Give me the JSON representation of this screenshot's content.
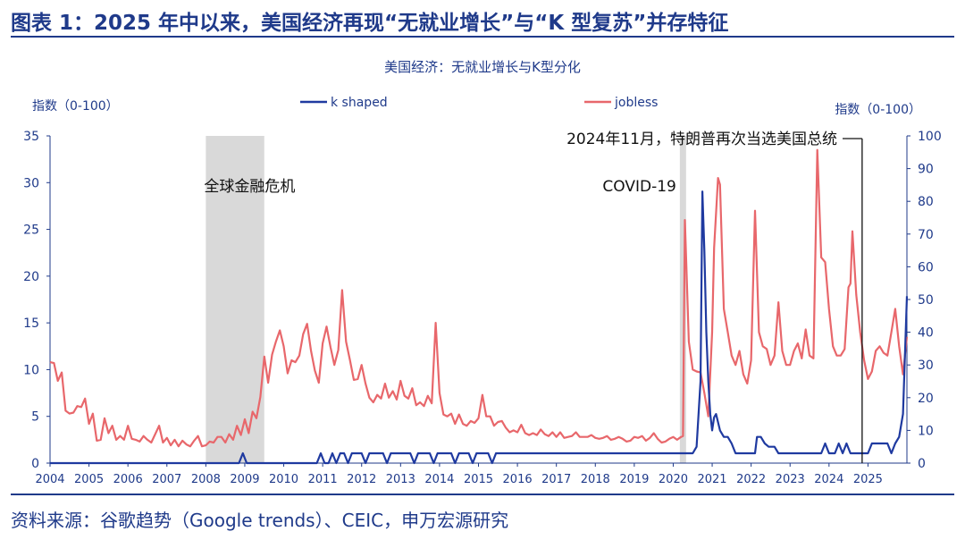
{
  "header": {
    "title": "图表 1：2025 年中以来，美国经济再现“无就业增长”与“K 型复苏”并存特征"
  },
  "footer": {
    "source": "资料来源：谷歌趋势（Google trends）、CEIC，申万宏源研究"
  },
  "colors": {
    "accent": "#1f3a8a",
    "k_shaped": "#1f3aa0",
    "jobless": "#e8676b",
    "shade": "#d9d9d9"
  },
  "chart_data": {
    "type": "line",
    "title": "美国经济：无就业增长与K型分化",
    "ylabel_left": "指数（0-100）",
    "ylabel_right": "指数（0-100）",
    "ylim_left": [
      0,
      35
    ],
    "ylim_right": [
      0,
      100
    ],
    "xlim": [
      2004.0,
      2026.0
    ],
    "yticks_left": [
      "0",
      "5",
      "10",
      "15",
      "20",
      "25",
      "30",
      "35"
    ],
    "yticks_right": [
      "0",
      "10",
      "20",
      "30",
      "40",
      "50",
      "60",
      "70",
      "80",
      "90",
      "100"
    ],
    "xticks": [
      "2004",
      "2005",
      "2006",
      "2007",
      "2008",
      "2009",
      "2010",
      "2011",
      "2012",
      "2013",
      "2014",
      "2015",
      "2016",
      "2017",
      "2018",
      "2019",
      "2020",
      "2021",
      "2022",
      "2023",
      "2024",
      "2025"
    ],
    "legend": {
      "placement": "top",
      "entries": [
        "k shaped",
        "jobless"
      ]
    },
    "shaded_periods": [
      {
        "label": "全球金融危机",
        "start": 2008.0,
        "end": 2009.5
      },
      {
        "label": "COVID-19",
        "start": 2020.17,
        "end": 2020.33
      }
    ],
    "annotations": [
      {
        "text": "2024年11月，特朗普再次当选美国总统",
        "x": 2024.85
      }
    ],
    "series": [
      {
        "name": "jobless",
        "axis": "left",
        "points": [
          [
            2004.0,
            10.8
          ],
          [
            2004.1,
            10.7
          ],
          [
            2004.2,
            8.8
          ],
          [
            2004.3,
            9.7
          ],
          [
            2004.4,
            5.6
          ],
          [
            2004.5,
            5.3
          ],
          [
            2004.6,
            5.4
          ],
          [
            2004.7,
            6.1
          ],
          [
            2004.8,
            6.0
          ],
          [
            2004.9,
            6.9
          ],
          [
            2005.0,
            4.2
          ],
          [
            2005.1,
            5.3
          ],
          [
            2005.2,
            2.4
          ],
          [
            2005.3,
            2.5
          ],
          [
            2005.4,
            4.8
          ],
          [
            2005.5,
            3.2
          ],
          [
            2005.6,
            4.0
          ],
          [
            2005.7,
            2.5
          ],
          [
            2005.8,
            2.9
          ],
          [
            2005.9,
            2.5
          ],
          [
            2006.0,
            4.0
          ],
          [
            2006.1,
            2.6
          ],
          [
            2006.2,
            2.5
          ],
          [
            2006.3,
            2.3
          ],
          [
            2006.4,
            2.9
          ],
          [
            2006.5,
            2.5
          ],
          [
            2006.6,
            2.2
          ],
          [
            2006.7,
            3.1
          ],
          [
            2006.8,
            4.0
          ],
          [
            2006.9,
            2.2
          ],
          [
            2007.0,
            2.7
          ],
          [
            2007.1,
            1.9
          ],
          [
            2007.2,
            2.5
          ],
          [
            2007.3,
            1.8
          ],
          [
            2007.4,
            2.4
          ],
          [
            2007.5,
            2.0
          ],
          [
            2007.6,
            1.8
          ],
          [
            2007.7,
            2.4
          ],
          [
            2007.8,
            2.9
          ],
          [
            2007.9,
            1.8
          ],
          [
            2008.0,
            1.9
          ],
          [
            2008.1,
            2.3
          ],
          [
            2008.2,
            2.2
          ],
          [
            2008.3,
            2.8
          ],
          [
            2008.4,
            2.8
          ],
          [
            2008.5,
            2.2
          ],
          [
            2008.6,
            3.1
          ],
          [
            2008.7,
            2.5
          ],
          [
            2008.8,
            4.0
          ],
          [
            2008.9,
            3.0
          ],
          [
            2009.0,
            4.7
          ],
          [
            2009.1,
            3.2
          ],
          [
            2009.2,
            5.5
          ],
          [
            2009.3,
            4.8
          ],
          [
            2009.4,
            7.1
          ],
          [
            2009.5,
            11.4
          ],
          [
            2009.6,
            8.6
          ],
          [
            2009.7,
            11.6
          ],
          [
            2009.8,
            13.0
          ],
          [
            2009.9,
            14.2
          ],
          [
            2010.0,
            12.5
          ],
          [
            2010.1,
            9.6
          ],
          [
            2010.2,
            11.0
          ],
          [
            2010.3,
            10.8
          ],
          [
            2010.4,
            11.5
          ],
          [
            2010.5,
            13.8
          ],
          [
            2010.6,
            14.9
          ],
          [
            2010.7,
            12.0
          ],
          [
            2010.8,
            9.9
          ],
          [
            2010.9,
            8.6
          ],
          [
            2011.0,
            12.8
          ],
          [
            2011.1,
            14.6
          ],
          [
            2011.2,
            12.4
          ],
          [
            2011.3,
            10.5
          ],
          [
            2011.4,
            12.1
          ],
          [
            2011.5,
            18.5
          ],
          [
            2011.6,
            13.0
          ],
          [
            2011.7,
            11.0
          ],
          [
            2011.8,
            8.9
          ],
          [
            2011.9,
            9.0
          ],
          [
            2012.0,
            10.5
          ],
          [
            2012.1,
            8.5
          ],
          [
            2012.2,
            7.0
          ],
          [
            2012.3,
            6.5
          ],
          [
            2012.4,
            7.3
          ],
          [
            2012.5,
            6.9
          ],
          [
            2012.6,
            8.5
          ],
          [
            2012.7,
            7.0
          ],
          [
            2012.8,
            7.7
          ],
          [
            2012.9,
            6.8
          ],
          [
            2013.0,
            8.8
          ],
          [
            2013.1,
            7.2
          ],
          [
            2013.2,
            6.9
          ],
          [
            2013.3,
            8.0
          ],
          [
            2013.4,
            6.2
          ],
          [
            2013.5,
            6.5
          ],
          [
            2013.6,
            6.1
          ],
          [
            2013.7,
            7.2
          ],
          [
            2013.8,
            6.4
          ],
          [
            2013.9,
            15.0
          ],
          [
            2014.0,
            7.5
          ],
          [
            2014.1,
            5.2
          ],
          [
            2014.2,
            5.0
          ],
          [
            2014.3,
            5.3
          ],
          [
            2014.4,
            4.2
          ],
          [
            2014.5,
            5.2
          ],
          [
            2014.6,
            4.2
          ],
          [
            2014.7,
            4.0
          ],
          [
            2014.8,
            4.5
          ],
          [
            2014.9,
            4.3
          ],
          [
            2015.0,
            4.8
          ],
          [
            2015.1,
            7.3
          ],
          [
            2015.2,
            5.0
          ],
          [
            2015.3,
            5.0
          ],
          [
            2015.4,
            4.0
          ],
          [
            2015.5,
            4.4
          ],
          [
            2015.6,
            4.5
          ],
          [
            2015.7,
            3.8
          ],
          [
            2015.8,
            3.3
          ],
          [
            2015.9,
            3.5
          ],
          [
            2016.0,
            3.3
          ],
          [
            2016.1,
            4.1
          ],
          [
            2016.2,
            3.2
          ],
          [
            2016.3,
            3.0
          ],
          [
            2016.4,
            3.2
          ],
          [
            2016.5,
            3.0
          ],
          [
            2016.6,
            3.6
          ],
          [
            2016.7,
            3.1
          ],
          [
            2016.8,
            2.9
          ],
          [
            2016.9,
            3.3
          ],
          [
            2017.0,
            2.8
          ],
          [
            2017.1,
            3.3
          ],
          [
            2017.2,
            2.7
          ],
          [
            2017.3,
            2.8
          ],
          [
            2017.4,
            2.9
          ],
          [
            2017.5,
            3.3
          ],
          [
            2017.6,
            2.8
          ],
          [
            2017.7,
            2.8
          ],
          [
            2017.8,
            2.8
          ],
          [
            2017.9,
            3.0
          ],
          [
            2018.0,
            2.7
          ],
          [
            2018.1,
            2.6
          ],
          [
            2018.2,
            2.7
          ],
          [
            2018.3,
            2.9
          ],
          [
            2018.4,
            2.5
          ],
          [
            2018.5,
            2.6
          ],
          [
            2018.6,
            2.8
          ],
          [
            2018.7,
            2.6
          ],
          [
            2018.8,
            2.3
          ],
          [
            2018.9,
            2.4
          ],
          [
            2019.0,
            2.8
          ],
          [
            2019.1,
            2.7
          ],
          [
            2019.2,
            2.9
          ],
          [
            2019.3,
            2.4
          ],
          [
            2019.4,
            2.7
          ],
          [
            2019.5,
            3.2
          ],
          [
            2019.6,
            2.6
          ],
          [
            2019.7,
            2.2
          ],
          [
            2019.8,
            2.3
          ],
          [
            2019.9,
            2.6
          ],
          [
            2020.0,
            2.8
          ],
          [
            2020.1,
            2.5
          ],
          [
            2020.2,
            2.8
          ],
          [
            2020.25,
            2.9
          ],
          [
            2020.3,
            26.0
          ],
          [
            2020.4,
            13.0
          ],
          [
            2020.5,
            10.0
          ],
          [
            2020.6,
            9.8
          ],
          [
            2020.7,
            9.7
          ],
          [
            2020.8,
            7.5
          ],
          [
            2020.9,
            5.0
          ],
          [
            2021.0,
            14.0
          ],
          [
            2021.05,
            23.0
          ],
          [
            2021.15,
            30.5
          ],
          [
            2021.2,
            29.8
          ],
          [
            2021.3,
            16.5
          ],
          [
            2021.4,
            14.0
          ],
          [
            2021.5,
            11.5
          ],
          [
            2021.6,
            10.5
          ],
          [
            2021.7,
            12.0
          ],
          [
            2021.8,
            9.5
          ],
          [
            2021.9,
            8.5
          ],
          [
            2022.0,
            11.0
          ],
          [
            2022.1,
            27.0
          ],
          [
            2022.2,
            14.0
          ],
          [
            2022.3,
            12.5
          ],
          [
            2022.4,
            12.2
          ],
          [
            2022.5,
            10.5
          ],
          [
            2022.6,
            11.5
          ],
          [
            2022.7,
            17.2
          ],
          [
            2022.8,
            12.0
          ],
          [
            2022.9,
            10.5
          ],
          [
            2023.0,
            10.5
          ],
          [
            2023.1,
            12.0
          ],
          [
            2023.2,
            12.8
          ],
          [
            2023.3,
            11.2
          ],
          [
            2023.4,
            14.3
          ],
          [
            2023.5,
            11.5
          ],
          [
            2023.6,
            11.2
          ],
          [
            2023.7,
            33.5
          ],
          [
            2023.8,
            22.0
          ],
          [
            2023.9,
            21.5
          ],
          [
            2024.0,
            16.5
          ],
          [
            2024.1,
            12.5
          ],
          [
            2024.2,
            11.5
          ],
          [
            2024.3,
            11.5
          ],
          [
            2024.4,
            12.2
          ],
          [
            2024.5,
            18.8
          ],
          [
            2024.55,
            19.2
          ],
          [
            2024.6,
            24.8
          ],
          [
            2024.7,
            18.0
          ],
          [
            2024.8,
            14.0
          ],
          [
            2024.9,
            11.0
          ],
          [
            2025.0,
            9.0
          ],
          [
            2025.1,
            9.8
          ],
          [
            2025.2,
            12.0
          ],
          [
            2025.3,
            12.5
          ],
          [
            2025.4,
            11.8
          ],
          [
            2025.5,
            11.5
          ],
          [
            2025.6,
            14.0
          ],
          [
            2025.7,
            16.5
          ],
          [
            2025.8,
            12.5
          ],
          [
            2025.9,
            9.5
          ],
          [
            2026.0,
            13.5
          ]
        ]
      },
      {
        "name": "k shaped",
        "axis": "right",
        "points": [
          [
            2004.0,
            0
          ],
          [
            2008.85,
            0
          ],
          [
            2008.95,
            3
          ],
          [
            2009.05,
            0
          ],
          [
            2010.85,
            0
          ],
          [
            2010.95,
            3
          ],
          [
            2011.05,
            0
          ],
          [
            2011.15,
            0
          ],
          [
            2011.25,
            3
          ],
          [
            2011.35,
            0
          ],
          [
            2011.45,
            3
          ],
          [
            2011.55,
            3
          ],
          [
            2011.65,
            0
          ],
          [
            2011.75,
            3
          ],
          [
            2012.0,
            3
          ],
          [
            2012.1,
            0
          ],
          [
            2012.2,
            3
          ],
          [
            2012.55,
            3
          ],
          [
            2012.65,
            0
          ],
          [
            2012.75,
            3
          ],
          [
            2013.25,
            3
          ],
          [
            2013.35,
            0
          ],
          [
            2013.45,
            3
          ],
          [
            2013.75,
            3
          ],
          [
            2013.85,
            0
          ],
          [
            2013.95,
            3
          ],
          [
            2014.3,
            3
          ],
          [
            2014.4,
            0
          ],
          [
            2014.5,
            3
          ],
          [
            2014.75,
            3
          ],
          [
            2014.85,
            0
          ],
          [
            2014.95,
            3
          ],
          [
            2015.25,
            3
          ],
          [
            2015.35,
            0
          ],
          [
            2015.45,
            3
          ],
          [
            2020.5,
            3
          ],
          [
            2020.6,
            5
          ],
          [
            2020.7,
            25
          ],
          [
            2020.75,
            83
          ],
          [
            2020.8,
            65
          ],
          [
            2020.85,
            40
          ],
          [
            2020.9,
            25
          ],
          [
            2020.95,
            15
          ],
          [
            2021.0,
            10
          ],
          [
            2021.05,
            14
          ],
          [
            2021.1,
            15
          ],
          [
            2021.2,
            10
          ],
          [
            2021.3,
            8
          ],
          [
            2021.4,
            8
          ],
          [
            2021.5,
            6
          ],
          [
            2021.6,
            3
          ],
          [
            2022.1,
            3
          ],
          [
            2022.15,
            8
          ],
          [
            2022.25,
            8
          ],
          [
            2022.35,
            6
          ],
          [
            2022.45,
            5
          ],
          [
            2022.6,
            5
          ],
          [
            2022.7,
            3
          ],
          [
            2023.8,
            3
          ],
          [
            2023.9,
            6
          ],
          [
            2024.0,
            3
          ],
          [
            2024.15,
            3
          ],
          [
            2024.25,
            6
          ],
          [
            2024.35,
            3
          ],
          [
            2024.45,
            6
          ],
          [
            2024.55,
            3
          ],
          [
            2025.0,
            3
          ],
          [
            2025.1,
            6
          ],
          [
            2025.5,
            6
          ],
          [
            2025.6,
            3
          ],
          [
            2025.7,
            6
          ],
          [
            2025.8,
            8
          ],
          [
            2025.9,
            15
          ],
          [
            2026.0,
            51
          ]
        ]
      }
    ]
  }
}
